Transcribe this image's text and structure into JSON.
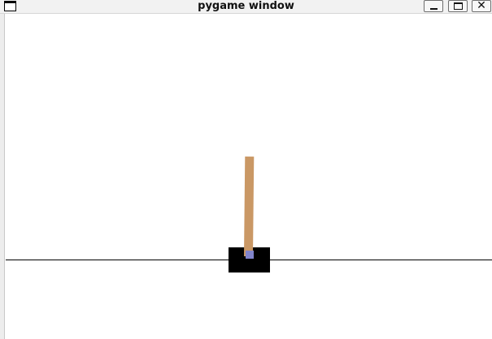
{
  "window": {
    "title": "pygame window",
    "controls": {
      "minimize_icon": "minimize-icon",
      "maximize_icon": "maximize-icon",
      "close_glyph": "✕"
    }
  },
  "scene": {
    "background_color": "#ffffff",
    "track_color": "#000000",
    "cart_color": "#000000",
    "pole_color": "#ca9865",
    "axle_color": "#8184cb"
  }
}
